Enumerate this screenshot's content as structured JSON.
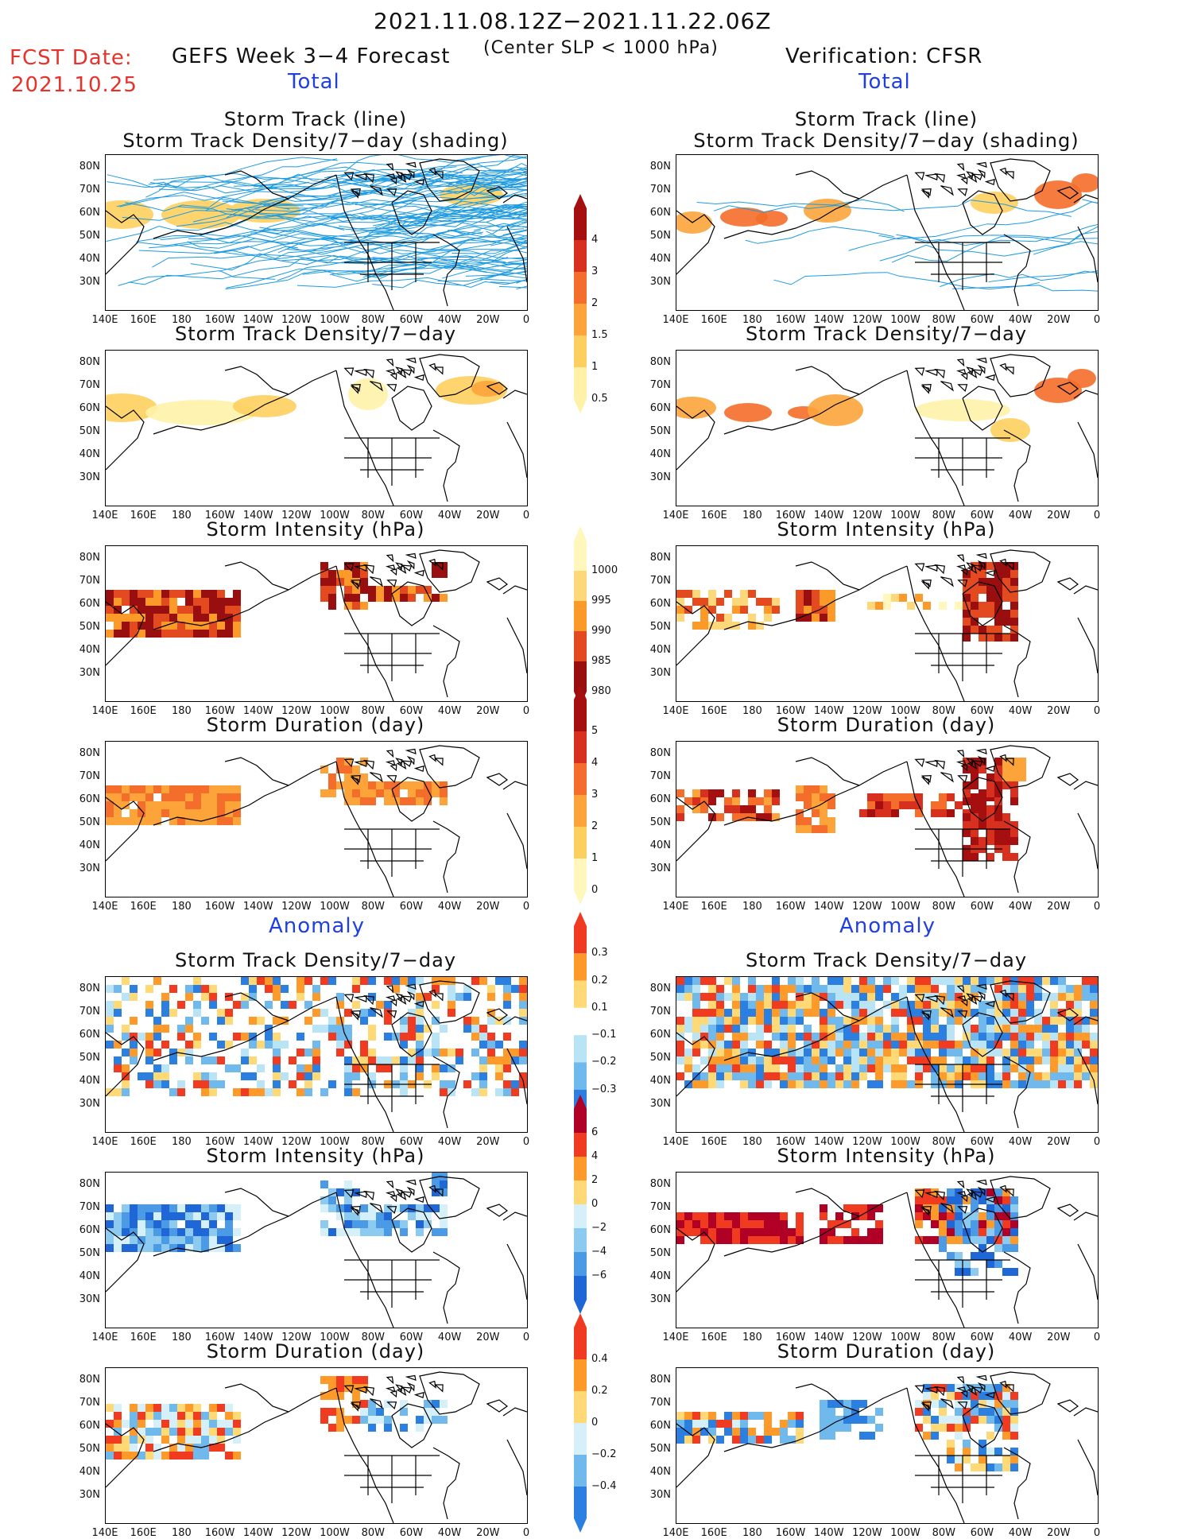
{
  "header": {
    "date_range": "2021.11.08.12Z−2021.11.22.06Z",
    "fcst_label": "FCST Date:",
    "fcst_date": "2021.10.25",
    "forecast_title": "GEFS Week 3−4 Forecast",
    "slp_note": "(Center SLP < 1000 hPa)",
    "verification": "Verification: CFSR"
  },
  "sections": {
    "total": "Total",
    "anomaly": "Anomaly"
  },
  "titles": {
    "track_line": "Storm Track (line)",
    "track_shading": "Storm Track Density/7−day (shading)",
    "density": "Storm Track Density/7−day",
    "intensity": "Storm Intensity (hPa)",
    "duration": "Storm Duration (day)"
  },
  "axes": {
    "lat": [
      "80N",
      "70N",
      "60N",
      "50N",
      "40N",
      "30N"
    ],
    "lon": [
      "140E",
      "160E",
      "180",
      "160W",
      "140W",
      "120W",
      "100W",
      "80W",
      "60W",
      "40W",
      "20W",
      "0"
    ]
  },
  "colorbars": {
    "density_total": {
      "labels": [
        "4",
        "3",
        "2",
        "1.5",
        "1",
        "0.5"
      ],
      "colors": [
        "#a50f0f",
        "#d7301f",
        "#f46d2a",
        "#fca43a",
        "#fdcf5e",
        "#fff2a8"
      ]
    },
    "intensity_total": {
      "labels": [
        "1000",
        "995",
        "990",
        "985",
        "980"
      ],
      "colors": [
        "#fff7bc",
        "#fdd87a",
        "#fb9a29",
        "#e34a1f",
        "#990f0f"
      ]
    },
    "duration_total": {
      "labels": [
        "5",
        "4",
        "3",
        "2",
        "1",
        "0"
      ],
      "colors": [
        "#a50f0f",
        "#d7301f",
        "#f46d2a",
        "#fca43a",
        "#fdcf5e",
        "#fff7bc"
      ]
    },
    "density_anom": {
      "labels": [
        "0.3",
        "0.2",
        "0.1",
        "−0.1",
        "−0.2",
        "−0.3"
      ],
      "colors": [
        "#f03b20",
        "#fd9a2a",
        "#fed976",
        "#ffffff",
        "#b8e4f5",
        "#6fb9ec",
        "#2b7fe0"
      ]
    },
    "intensity_anom": {
      "labels": [
        "6",
        "4",
        "2",
        "0",
        "−2",
        "−4",
        "−6"
      ],
      "colors": [
        "#b10026",
        "#f03b20",
        "#fd9a2a",
        "#fed976",
        "#d6f0fa",
        "#8ccaf0",
        "#4a9ae6",
        "#1f67d6"
      ]
    },
    "duration_anom": {
      "labels": [
        "0.4",
        "0.2",
        "0",
        "−0.2",
        "−0.4"
      ],
      "colors": [
        "#f03b20",
        "#fd9a2a",
        "#fed976",
        "#d6f0fa",
        "#6fb9ec",
        "#2b7fe0"
      ]
    }
  }
}
